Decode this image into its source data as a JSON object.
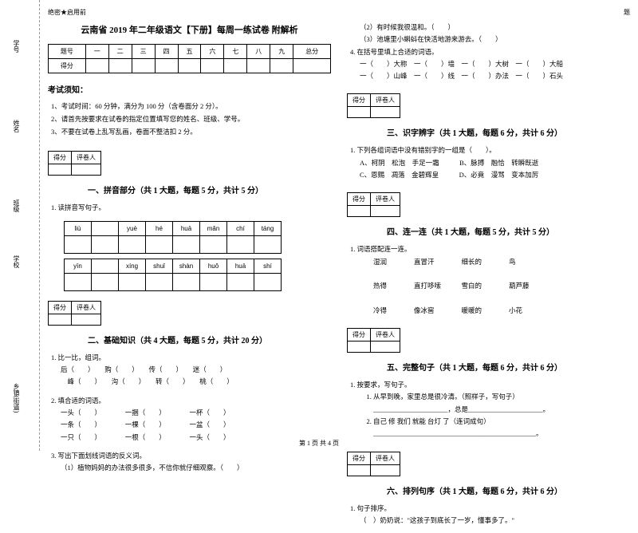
{
  "binding": {
    "l1": "学号",
    "l2": "姓名",
    "l3": "班级",
    "l4": "学校",
    "l5": "内",
    "l6": "乡镇(街道)"
  },
  "header": {
    "secret": "绝密★启用前",
    "title": "云南省 2019 年二年级语文【下册】每周一练试卷 附解析",
    "topright": "题"
  },
  "scoreTable": {
    "r1": [
      "题号",
      "一",
      "二",
      "三",
      "四",
      "五",
      "六",
      "七",
      "八",
      "九",
      "总分"
    ],
    "r2": [
      "得分",
      "",
      "",
      "",
      "",
      "",
      "",
      "",
      "",
      "",
      ""
    ]
  },
  "notice": {
    "title": "考试须知：",
    "items": [
      "1、考试时间：60 分钟，满分为 100 分（含卷面分 2 分）。",
      "2、请首先按要求在试卷的指定位置填写您的姓名、班级、学号。",
      "3、不要在试卷上乱写乱画，卷面不整洁扣 2 分。"
    ]
  },
  "sectionBox": {
    "c1": "得分",
    "c2": "评卷人"
  },
  "sec1": {
    "title": "一、拼音部分（共 1 大题，每题 5 分，共计 5 分）",
    "q1": "1. 读拼音写句子。",
    "row1": [
      "liù",
      "",
      "yuè",
      "hé",
      "huā",
      "mǎn",
      "chí",
      "táng"
    ],
    "row2": [
      "yīn",
      "",
      "xíng",
      "shuǐ",
      "shàn",
      "huǒ",
      "huā",
      "shí"
    ]
  },
  "sec2": {
    "title": "二、基础知识（共 4 大题，每题 5 分，共计 20 分）",
    "q1": "1. 比一比，组词。",
    "q1a": "后（　　）　　购（　　）　　传（　　）　　迷（　　）",
    "q1b": "　峰（　　）　　沟（　　）　　转（　　）　　桃（　　）",
    "q2": "2. 填合适的词语。",
    "q2a": "一头（　　）　　　　一捆（　　）　　　　一杯（　　）",
    "q2b": "一条（　　）　　　　一棵（　　）　　　　一盆（　　）",
    "q2c": "一只（　　）　　　　一根（　　）　　　　一头（　　）",
    "q3": "3. 写出下面划线词语的反义词。",
    "q3a": "（1）植物妈妈的办法很多很多，不信你就仔细观察。（　　）"
  },
  "col2top": {
    "l1": "（2）有时候我很温和。（　　）",
    "l2": "（3）池塘里小蝌蚪在快活地游来游去。（　　）",
    "q4": "4. 在括号里填上合适的词语。",
    "q4a": "一（　　）大称　一（　　）墙　一（　　）大树　一（　　）大船",
    "q4b": "一（　　）山峰　一（　　）线　一（　　）办法　一（　　）石头"
  },
  "sec3": {
    "title": "三、识字辨字（共 1 大题，每题 6 分，共计 6 分）",
    "q1": "1. 下列各组词语中没有错别字的一组是（　　）。",
    "qa": "A、柯阴　松泡　手足一霜　　　B、脉搏　融恰　转瞬既逝",
    "qb": "C、恩赐　凋落　金碧辉皇　　　D、必竟　漫骂　变本加厉"
  },
  "sec4": {
    "title": "四、连一连（共 1 大题，每题 5 分，共计 5 分）",
    "q1": "1. 词语搭配连一连。",
    "r1": "　　湿润　　　　直冒汗　　　　细长的　　　　鸟",
    "r2": "　　热得　　　　直打哆嗦　　　雪白的　　　　葫芦藤",
    "r3": "　　冷得　　　　像冰窖　　　　暖暖的　　　　小花"
  },
  "sec5": {
    "title": "五、完整句子（共 1 大题，每题 6 分，共计 6 分）",
    "q1": "1. 按要求，写句子。",
    "q1a": "　1. 从早到晚，家里总是很冷清。（照样子，写句子）",
    "q1b": "　　______________________，总是______________________。",
    "q1c": "　2. 自己 修 我们 就能 台灯 了（连词成句）",
    "q1d": "　　________________________________________________。"
  },
  "sec6": {
    "title": "六、排列句序（共 1 大题，每题 6 分，共计 6 分）",
    "q1": "1. 句子排序。",
    "q1a": "（　）奶奶说：\"这孩子到底长了一岁，懂事多了。\""
  },
  "footer": "第 1 页 共 4 页"
}
